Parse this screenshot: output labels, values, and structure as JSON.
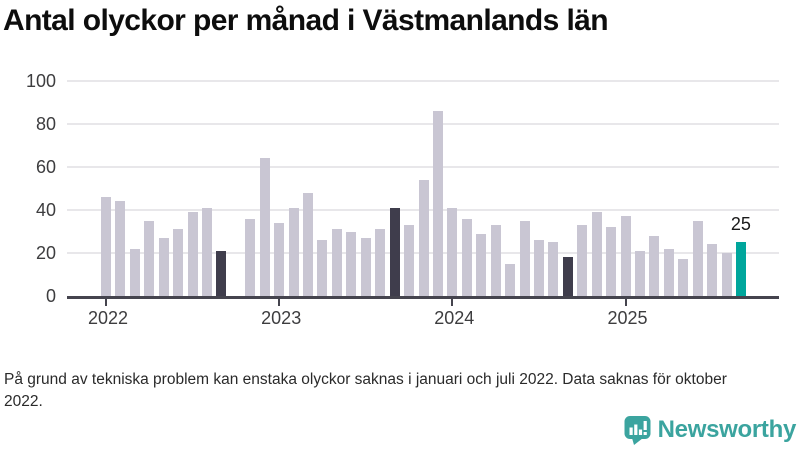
{
  "title": "Antal olyckor per månad i Västmanlands län",
  "footnote": "På grund av tekniska problem kan enstaka olyckor saknas i januari och juli 2022. Data saknas för oktober 2022.",
  "logo": {
    "text": "Newsworthy"
  },
  "colors": {
    "bar_default": "#c9c6d3",
    "bar_highlight": "#3f3d4c",
    "bar_current": "#00a69c",
    "gridline": "#e8e7ea",
    "axis": "#45444e",
    "tick_label": "#3d3d3f",
    "value_label": "#1a1a1a",
    "logo_teal": "#3ba49f"
  },
  "chart_data": {
    "type": "bar",
    "title": "Antal olyckor per månad i Västmanlands län",
    "xlabel": "",
    "ylabel": "",
    "ylim": [
      0,
      100
    ],
    "yticks": [
      0,
      20,
      40,
      60,
      80,
      100
    ],
    "grid": "horizontal",
    "legend": null,
    "year_ticks": [
      "2022",
      "2023",
      "2024",
      "2025"
    ],
    "months": [
      "2022-01",
      "2022-02",
      "2022-03",
      "2022-04",
      "2022-05",
      "2022-06",
      "2022-07",
      "2022-08",
      "2022-09",
      "2022-10",
      "2022-11",
      "2022-12",
      "2023-01",
      "2023-02",
      "2023-03",
      "2023-04",
      "2023-05",
      "2023-06",
      "2023-07",
      "2023-08",
      "2023-09",
      "2023-10",
      "2023-11",
      "2023-12",
      "2024-01",
      "2024-02",
      "2024-03",
      "2024-04",
      "2024-05",
      "2024-06",
      "2024-07",
      "2024-08",
      "2024-09",
      "2024-10",
      "2024-11",
      "2024-12",
      "2025-01",
      "2025-02",
      "2025-03",
      "2025-04",
      "2025-05",
      "2025-06",
      "2025-07",
      "2025-08",
      "2025-09"
    ],
    "values": [
      46,
      44,
      22,
      35,
      27,
      31,
      39,
      41,
      21,
      null,
      36,
      64,
      34,
      41,
      48,
      26,
      31,
      30,
      27,
      31,
      41,
      33,
      54,
      86,
      41,
      36,
      29,
      33,
      15,
      35,
      26,
      25,
      18,
      33,
      39,
      32,
      37,
      21,
      28,
      22,
      17,
      35,
      24,
      20,
      25
    ],
    "missing_months": [
      "2022-10"
    ],
    "highlighted_months": [
      "2022-09",
      "2023-09",
      "2024-09"
    ],
    "current_month": "2025-09",
    "data_label": {
      "month": "2025-09",
      "text": "25"
    }
  }
}
